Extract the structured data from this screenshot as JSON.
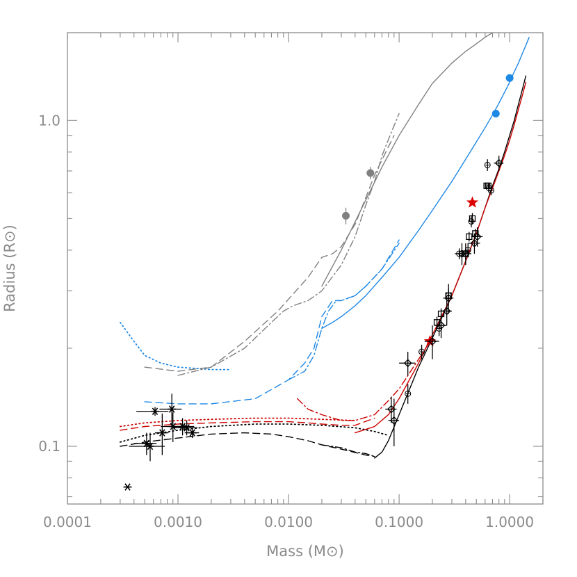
{
  "chart_data": {
    "type": "line",
    "xlabel": "Mass (M⊙)",
    "ylabel": "Radius (R⊙)",
    "xscale": "log",
    "yscale": "log",
    "xlim": [
      0.0001,
      2.0
    ],
    "ylim": [
      0.0665,
      1.86
    ],
    "x_ticks": [
      {
        "value": 0.0001,
        "label": "0.0001"
      },
      {
        "value": 0.001,
        "label": "0.0010"
      },
      {
        "value": 0.01,
        "label": "0.0100"
      },
      {
        "value": 0.1,
        "label": "0.1000"
      },
      {
        "value": 1.0,
        "label": "1.0000"
      }
    ],
    "y_ticks": [
      {
        "value": 0.1,
        "label": "0.1"
      },
      {
        "value": 1.0,
        "label": "1.0"
      }
    ],
    "grid": false,
    "legend": "none",
    "series": [
      {
        "style": "solid",
        "color": "#000000",
        "x": [
          0.06,
          0.07,
          0.08,
          0.1,
          0.15,
          0.2,
          0.3,
          0.4,
          0.5,
          0.6,
          0.7,
          0.8,
          0.9,
          1.0,
          1.1,
          1.2,
          1.3,
          1.4
        ],
        "y": [
          0.092,
          0.096,
          0.104,
          0.125,
          0.175,
          0.215,
          0.29,
          0.37,
          0.45,
          0.54,
          0.63,
          0.71,
          0.8,
          0.9,
          1.0,
          1.12,
          1.24,
          1.37
        ]
      },
      {
        "style": "dash-dot",
        "color": "#000000",
        "x": [
          0.02,
          0.03,
          0.04,
          0.05,
          0.06
        ],
        "y": [
          0.101,
          0.099,
          0.096,
          0.095,
          0.093
        ]
      },
      {
        "style": "dash",
        "color": "#000000",
        "x": [
          0.0003,
          0.0005,
          0.001,
          0.002,
          0.004,
          0.007,
          0.01,
          0.015,
          0.02,
          0.03,
          0.05,
          0.06
        ],
        "y": [
          0.1,
          0.103,
          0.106,
          0.109,
          0.11,
          0.109,
          0.107,
          0.104,
          0.101,
          0.098,
          0.094,
          0.093
        ]
      },
      {
        "style": "dot",
        "color": "#000000",
        "x": [
          0.0003,
          0.0005,
          0.001,
          0.002,
          0.005,
          0.01,
          0.02,
          0.04,
          0.06,
          0.08
        ],
        "y": [
          0.103,
          0.108,
          0.112,
          0.115,
          0.117,
          0.117,
          0.116,
          0.114,
          0.111,
          0.108
        ]
      },
      {
        "style": "solid",
        "color": "#cc0000",
        "x": [
          0.04,
          0.06,
          0.08,
          0.1,
          0.15,
          0.2,
          0.3,
          0.4,
          0.5,
          0.6,
          0.7,
          0.8,
          0.9,
          1.0,
          1.1,
          1.2,
          1.3,
          1.4
        ],
        "y": [
          0.11,
          0.115,
          0.125,
          0.14,
          0.18,
          0.22,
          0.29,
          0.37,
          0.45,
          0.54,
          0.62,
          0.7,
          0.78,
          0.87,
          0.97,
          1.08,
          1.19,
          1.31
        ]
      },
      {
        "style": "dash-dot",
        "color": "#cc0000",
        "x": [
          0.012,
          0.015,
          0.02,
          0.03,
          0.04,
          0.06,
          0.08,
          0.1,
          0.15,
          0.2
        ],
        "y": [
          0.14,
          0.13,
          0.125,
          0.12,
          0.12,
          0.125,
          0.138,
          0.15,
          0.185,
          0.215
        ]
      },
      {
        "style": "dash",
        "color": "#cc0000",
        "x": [
          0.0003,
          0.0005,
          0.001,
          0.002,
          0.005,
          0.01,
          0.015,
          0.02,
          0.03,
          0.04,
          0.06
        ],
        "y": [
          0.112,
          0.115,
          0.117,
          0.118,
          0.119,
          0.119,
          0.118,
          0.117,
          0.116,
          0.116,
          0.122
        ]
      },
      {
        "style": "dot",
        "color": "#cc0000",
        "x": [
          0.0003,
          0.0005,
          0.001,
          0.002,
          0.005,
          0.01,
          0.02,
          0.04
        ],
        "y": [
          0.115,
          0.118,
          0.12,
          0.121,
          0.122,
          0.122,
          0.121,
          0.12
        ]
      },
      {
        "style": "solid",
        "color": "#1e88e5",
        "x": [
          0.02,
          0.025,
          0.03,
          0.04,
          0.05,
          0.07,
          0.1,
          0.15,
          0.2,
          0.3,
          0.4,
          0.5,
          0.6,
          0.7,
          0.8,
          0.9,
          1.0,
          1.1,
          1.2,
          1.3,
          1.4,
          1.5
        ],
        "y": [
          0.23,
          0.24,
          0.25,
          0.27,
          0.29,
          0.33,
          0.38,
          0.46,
          0.53,
          0.65,
          0.76,
          0.86,
          0.95,
          1.04,
          1.13,
          1.22,
          1.31,
          1.41,
          1.5,
          1.6,
          1.7,
          1.8
        ]
      },
      {
        "style": "dash-dot",
        "color": "#1e88e5",
        "x": [
          0.01,
          0.014,
          0.017,
          0.02,
          0.023,
          0.027,
          0.03,
          0.04,
          0.05,
          0.07,
          0.1
        ],
        "y": [
          0.16,
          0.17,
          0.19,
          0.23,
          0.26,
          0.28,
          0.28,
          0.29,
          0.31,
          0.35,
          0.42
        ]
      },
      {
        "style": "dash",
        "color": "#1e88e5",
        "x": [
          0.0005,
          0.001,
          0.002,
          0.005,
          0.01,
          0.014,
          0.017,
          0.02,
          0.025,
          0.03,
          0.04,
          0.05,
          0.07,
          0.1
        ],
        "y": [
          0.137,
          0.135,
          0.135,
          0.14,
          0.16,
          0.18,
          0.2,
          0.25,
          0.28,
          0.28,
          0.29,
          0.31,
          0.35,
          0.43
        ]
      },
      {
        "style": "dot",
        "color": "#1e88e5",
        "x": [
          0.0003,
          0.0004,
          0.0005,
          0.0007,
          0.001,
          0.002,
          0.003
        ],
        "y": [
          0.24,
          0.21,
          0.19,
          0.18,
          0.175,
          0.172,
          0.172
        ]
      },
      {
        "style": "solid",
        "color": "#808080",
        "x": [
          0.02,
          0.03,
          0.05,
          0.07,
          0.1,
          0.15,
          0.2,
          0.3,
          0.4,
          0.5,
          0.6,
          0.7
        ],
        "y": [
          0.31,
          0.4,
          0.57,
          0.72,
          0.9,
          1.12,
          1.3,
          1.5,
          1.63,
          1.72,
          1.8,
          1.86
        ]
      },
      {
        "style": "dash-dot",
        "color": "#808080",
        "x": [
          0.001,
          0.002,
          0.004,
          0.007,
          0.009,
          0.011,
          0.015,
          0.02,
          0.03,
          0.04,
          0.05,
          0.06,
          0.07,
          0.085,
          0.1
        ],
        "y": [
          0.165,
          0.175,
          0.2,
          0.24,
          0.26,
          0.27,
          0.28,
          0.3,
          0.36,
          0.44,
          0.55,
          0.65,
          0.78,
          0.92,
          1.05
        ]
      },
      {
        "style": "dash",
        "color": "#808080",
        "x": [
          0.0005,
          0.001,
          0.002,
          0.004,
          0.008,
          0.015,
          0.02,
          0.025,
          0.03,
          0.04,
          0.05,
          0.06,
          0.08,
          0.09
        ],
        "y": [
          0.175,
          0.17,
          0.175,
          0.21,
          0.26,
          0.33,
          0.38,
          0.39,
          0.41,
          0.48,
          0.58,
          0.68,
          0.83,
          0.9
        ]
      }
    ],
    "points": [
      {
        "group": "gray-filled-circles",
        "marker": "circle-filled",
        "color": "#808080",
        "x": [
          0.033,
          0.055
        ],
        "y": [
          0.51,
          0.69
        ],
        "yerr": [
          0.03,
          0.03
        ]
      },
      {
        "group": "blue-filled-circles",
        "marker": "circle-filled",
        "color": "#1e88e5",
        "x": [
          0.75,
          1.0
        ],
        "y": [
          1.05,
          1.35
        ]
      },
      {
        "group": "red-stars",
        "marker": "star-filled",
        "color": "#dd0000",
        "x": [
          0.19,
          0.46
        ],
        "y": [
          0.21,
          0.56
        ]
      },
      {
        "group": "asterisks",
        "marker": "asterisk",
        "color": "#000000",
        "x": [
          0.00035,
          0.00052,
          0.00056,
          0.00062,
          0.00072,
          0.00088,
          0.0009,
          0.0011,
          0.0012,
          0.00135
        ],
        "y": [
          0.075,
          0.102,
          0.1,
          0.128,
          0.11,
          0.13,
          0.115,
          0.115,
          0.114,
          0.11
        ],
        "yerr": [
          0.0,
          0.008,
          0.01,
          0.004,
          0.016,
          0.015,
          0.012,
          0.007,
          0.006,
          0.004
        ],
        "xerr": [
          0.0,
          0.00012,
          0.0002,
          0.0002,
          0.0001,
          0.0002,
          0.0002,
          0.0003,
          0.0003,
          0.0002
        ]
      },
      {
        "group": "diamonds",
        "marker": "diamond-open",
        "color": "#000000",
        "x": [
          0.085,
          0.09,
          0.12,
          0.2,
          0.24,
          0.27,
          0.28,
          0.37,
          0.4,
          0.48,
          0.51,
          0.8
        ],
        "y": [
          0.13,
          0.12,
          0.18,
          0.21,
          0.235,
          0.26,
          0.285,
          0.39,
          0.39,
          0.42,
          0.44,
          0.74
        ],
        "yerr": [
          0.012,
          0.02,
          0.015,
          0.025,
          0.02,
          0.025,
          0.03,
          0.03,
          0.03,
          0.03,
          0.03,
          0.04
        ],
        "xerr": [
          0.01,
          0.01,
          0.02,
          0.03,
          0.03,
          0.03,
          0.03,
          0.05,
          0.05,
          0.06,
          0.06,
          0.08
        ]
      },
      {
        "group": "open-circles",
        "marker": "circle-plus",
        "color": "#000000",
        "x": [
          0.12,
          0.16,
          0.23,
          0.28,
          0.35,
          0.42,
          0.45,
          0.63,
          0.68,
          0.65
        ],
        "y": [
          0.145,
          0.195,
          0.23,
          0.29,
          0.39,
          0.4,
          0.49,
          0.73,
          0.61,
          0.62
        ],
        "yerr": [
          0.01,
          0.01,
          0.012,
          0.015,
          0.015,
          0.02,
          0.02,
          0.03,
          0.02,
          0.02
        ]
      },
      {
        "group": "squares",
        "marker": "square-open",
        "color": "#000000",
        "x": [
          0.22,
          0.24,
          0.28,
          0.4,
          0.43,
          0.46,
          0.49,
          0.62,
          0.64
        ],
        "y": [
          0.24,
          0.255,
          0.29,
          0.39,
          0.44,
          0.5,
          0.45,
          0.63,
          0.63
        ],
        "yerr": [
          0.01,
          0.01,
          0.012,
          0.015,
          0.015,
          0.02,
          0.015,
          0.01,
          0.01
        ]
      }
    ]
  }
}
